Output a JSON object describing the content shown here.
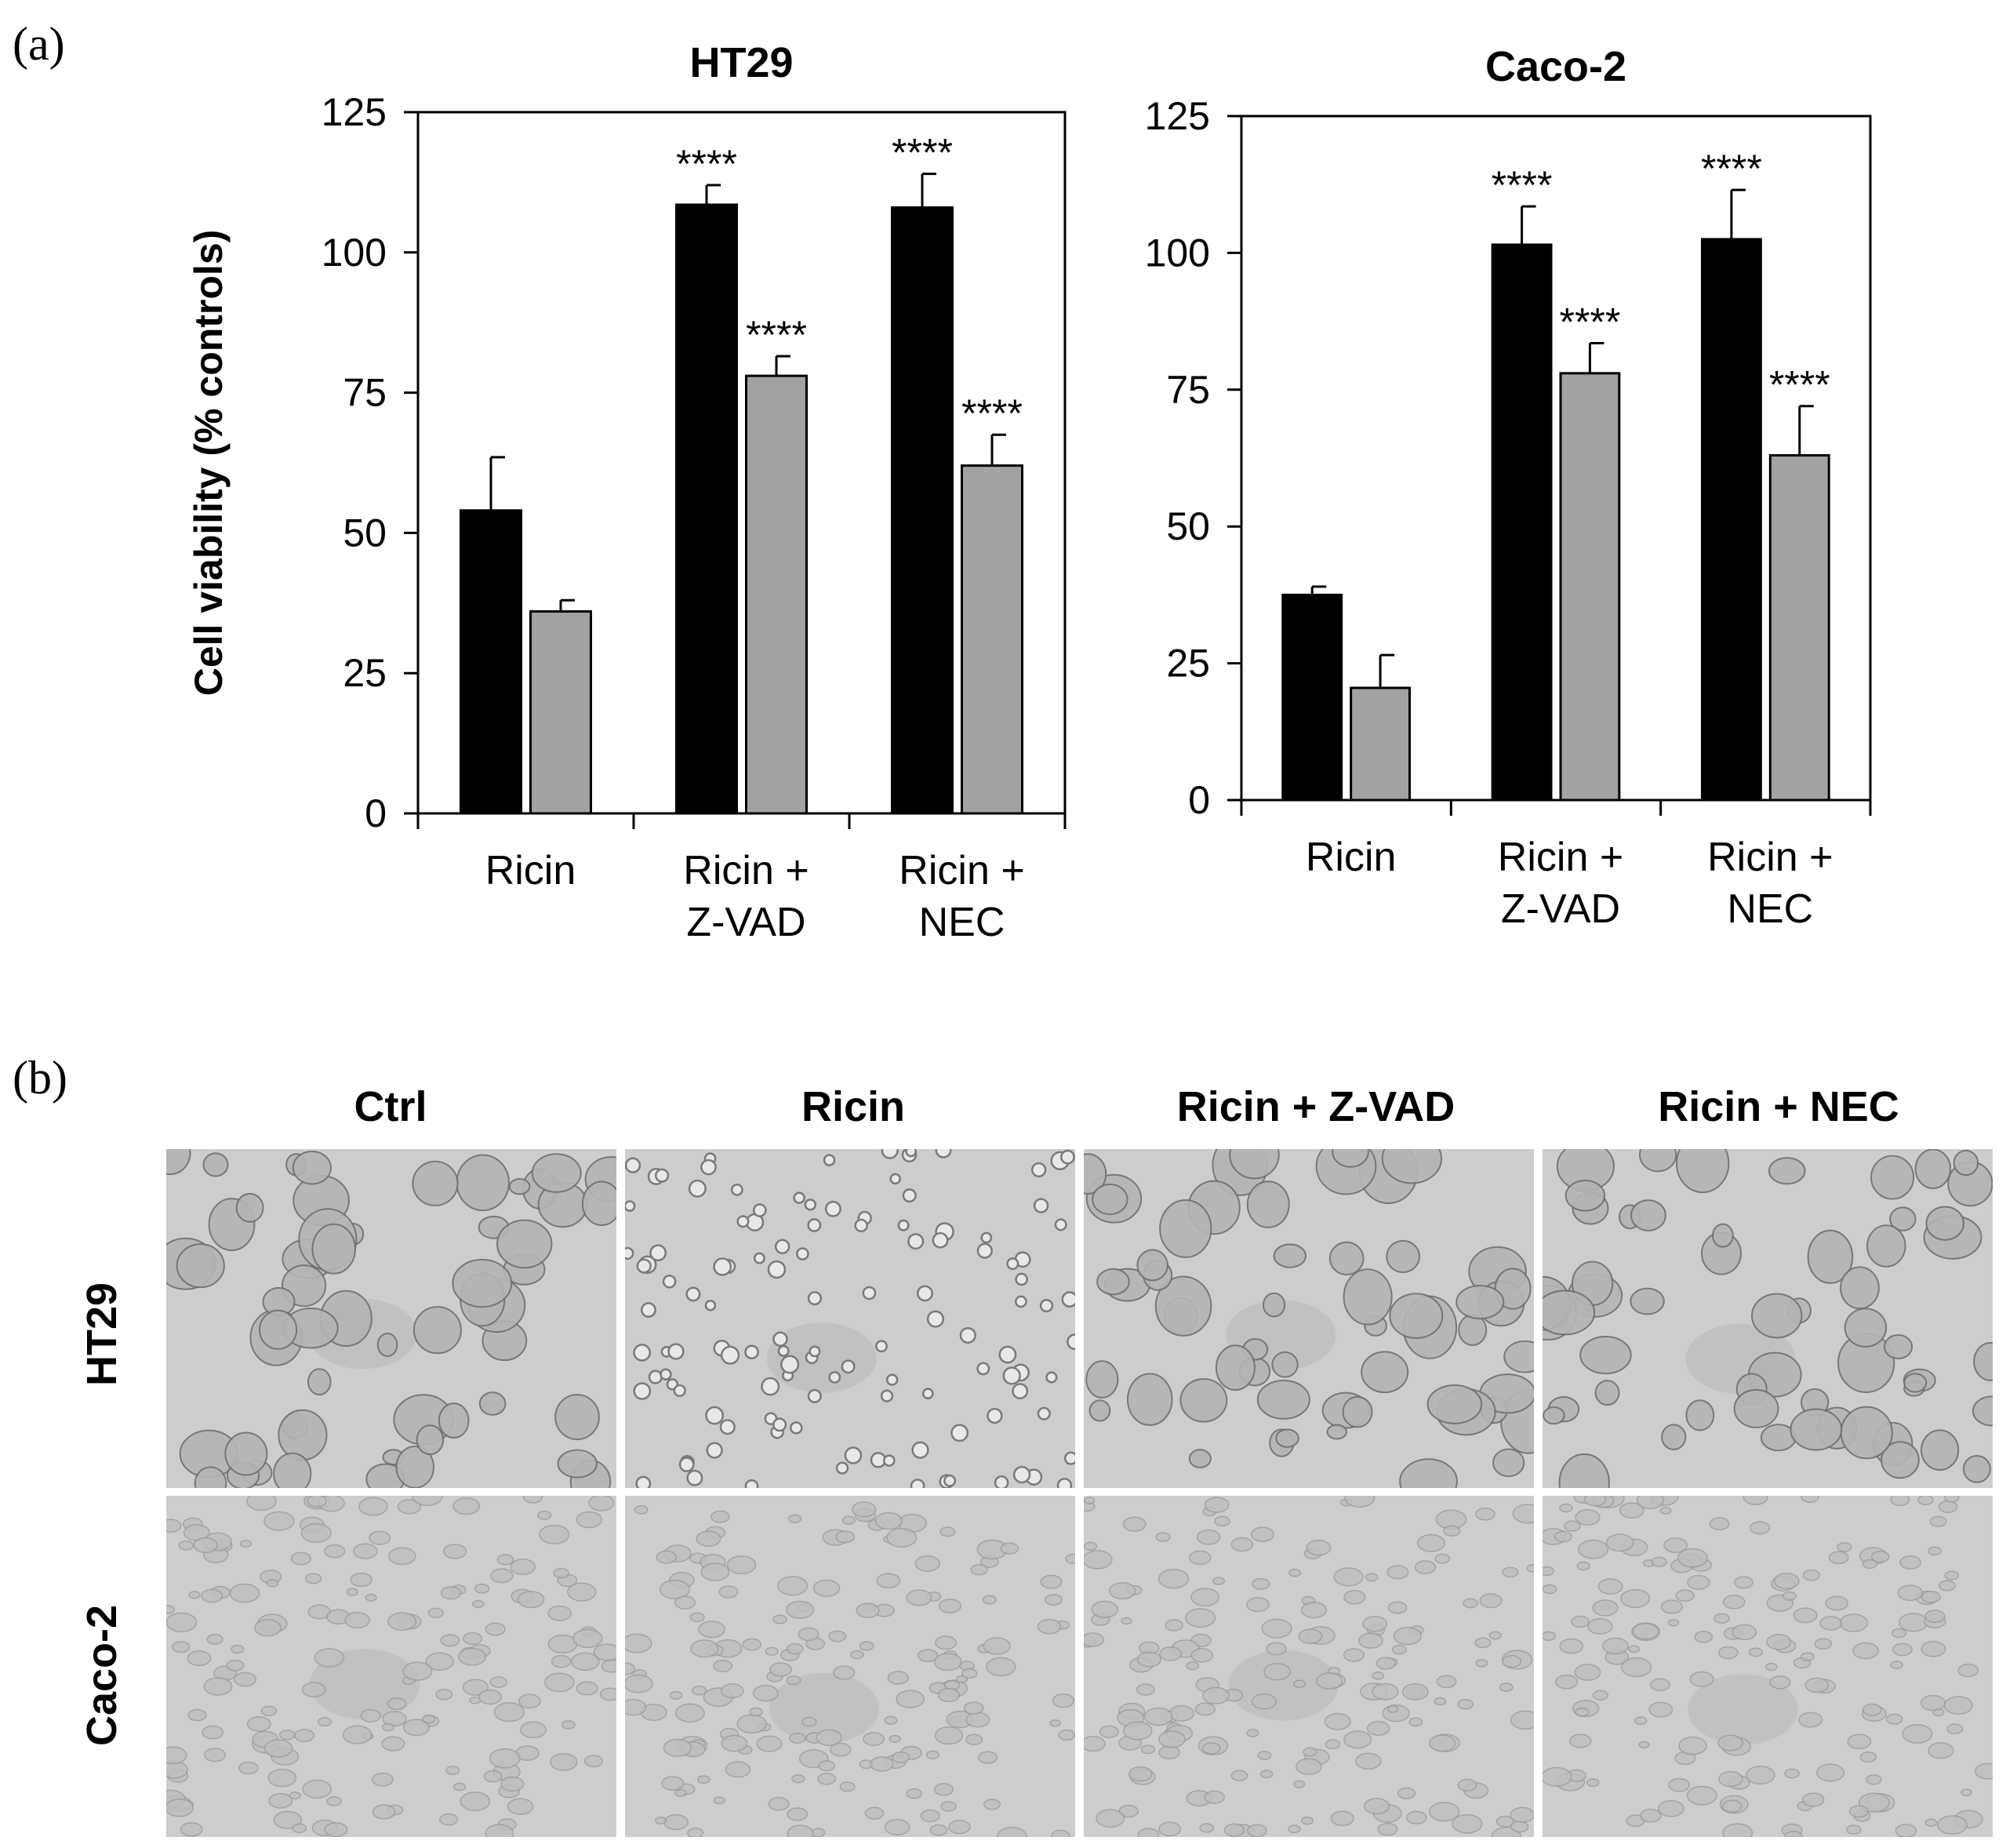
{
  "panels": {
    "a_label": "(a)",
    "b_label": "(b)"
  },
  "chart_data": [
    {
      "type": "bar",
      "title": "HT29",
      "ylabel": "Cell viability (% controls)",
      "xlabel": "",
      "ylim": [
        0,
        125
      ],
      "yticks": [
        0,
        25,
        50,
        75,
        100,
        125
      ],
      "categories": [
        [
          "Ricin"
        ],
        [
          "Ricin +",
          "Z-VAD"
        ],
        [
          "Ricin +",
          "NEC"
        ]
      ],
      "series": [
        {
          "color": "#000000",
          "values": [
            54,
            108.5,
            108
          ],
          "errors": [
            9.5,
            3.5,
            6
          ]
        },
        {
          "color": "#a1a3a2",
          "values": [
            36,
            78,
            62
          ],
          "errors": [
            2,
            3.5,
            5.5
          ]
        }
      ],
      "annotations": [
        [
          "",
          "****",
          "****"
        ],
        [
          "",
          "****",
          "****"
        ]
      ],
      "grid": false,
      "legend": "none"
    },
    {
      "type": "bar",
      "title": "Caco-2",
      "ylabel": "",
      "xlabel": "",
      "ylim": [
        0,
        125
      ],
      "yticks": [
        0,
        25,
        50,
        75,
        100,
        125
      ],
      "categories": [
        [
          "Ricin"
        ],
        [
          "Ricin +",
          "Z-VAD"
        ],
        [
          "Ricin +",
          "NEC"
        ]
      ],
      "series": [
        {
          "color": "#000000",
          "values": [
            37.5,
            101.5,
            102.5
          ],
          "errors": [
            1.5,
            7,
            9
          ]
        },
        {
          "color": "#a1a3a2",
          "values": [
            20.5,
            78,
            63
          ],
          "errors": [
            6,
            5.5,
            9
          ]
        }
      ],
      "annotations": [
        [
          "",
          "****",
          "****"
        ],
        [
          "",
          "****",
          "****"
        ]
      ],
      "grid": false,
      "legend": "none"
    }
  ],
  "micrographs": {
    "columns": [
      "Ctrl",
      "Ricin",
      "Ricin + Z-VAD",
      "Ricin + NEC"
    ],
    "rows": [
      "HT29",
      "Caco-2"
    ]
  }
}
